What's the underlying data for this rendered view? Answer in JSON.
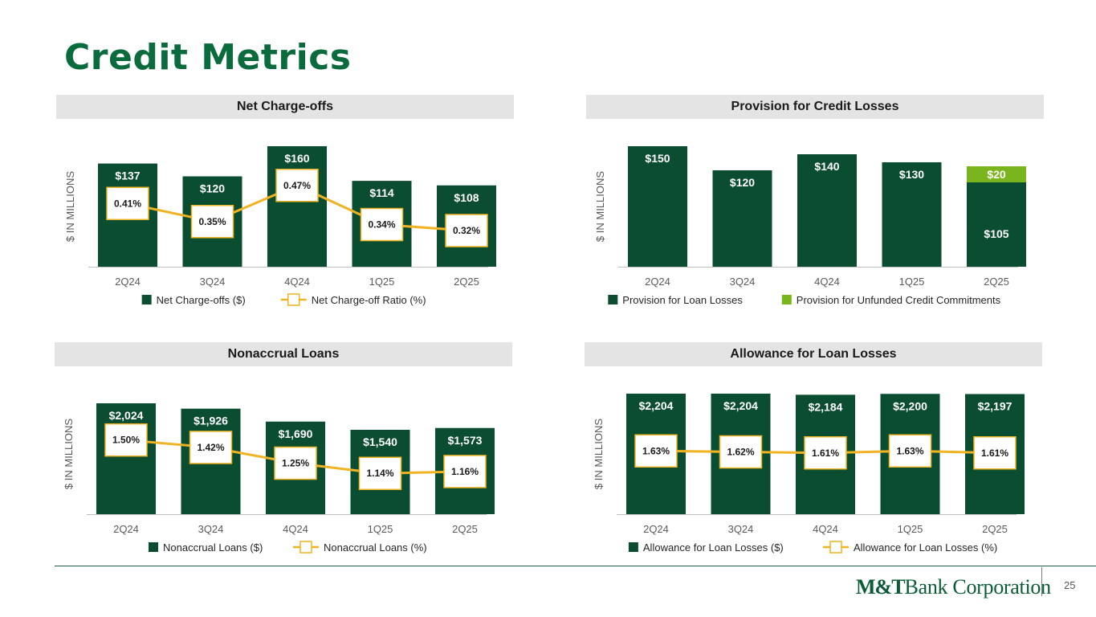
{
  "page": {
    "title": "Credit Metrics",
    "page_number": "25",
    "brand": {
      "bold": "M&T",
      "rest": "Bank Corporation"
    }
  },
  "colors": {
    "bar": "#0b4d30",
    "bar_light": "#7ab51d",
    "line": "#f0b323",
    "title": "#0a6b3d",
    "header_bg": "#e4e4e4",
    "axis_text": "#595959"
  },
  "chart_data": [
    {
      "id": "net-charge-offs",
      "type": "bar",
      "title": "Net Charge-offs",
      "ylabel": "$  IN MILLIONS",
      "ylim": [
        0,
        160
      ],
      "categories": [
        "2Q24",
        "3Q24",
        "4Q24",
        "1Q25",
        "2Q25"
      ],
      "series": [
        {
          "name": "Net Charge-offs ($)",
          "kind": "bar",
          "values": [
            137,
            120,
            160,
            114,
            108
          ],
          "labels": [
            "$137",
            "$120",
            "$160",
            "$114",
            "$108"
          ]
        }
      ],
      "line": {
        "name": "Net Charge-off Ratio (%)",
        "values": [
          0.41,
          0.35,
          0.47,
          0.34,
          0.32
        ],
        "labels": [
          "0.41%",
          "0.35%",
          "0.47%",
          "0.34%",
          "0.32%"
        ],
        "range": [
          0.2,
          0.6
        ]
      },
      "legend": [
        "Net Charge-offs ($)",
        "Net Charge-off Ratio (%)"
      ]
    },
    {
      "id": "provision-credit-losses",
      "type": "bar",
      "stacked": true,
      "title": "Provision for Credit Losses",
      "ylabel": "$  IN MILLIONS",
      "ylim": [
        0,
        150
      ],
      "categories": [
        "2Q24",
        "3Q24",
        "4Q24",
        "1Q25",
        "2Q25"
      ],
      "series": [
        {
          "name": "Provision for Loan Losses",
          "kind": "bar",
          "values": [
            150,
            120,
            140,
            130,
            105
          ],
          "labels": [
            "$150",
            "$120",
            "$140",
            "$130",
            "$105"
          ]
        },
        {
          "name": "Provision for Unfunded Credit Commitments",
          "kind": "bar",
          "values": [
            0,
            0,
            0,
            0,
            20
          ],
          "labels": [
            "",
            "",
            "",
            "",
            "$20"
          ]
        }
      ],
      "legend": [
        "Provision for Loan Losses",
        "Provision for Unfunded Credit Commitments"
      ]
    },
    {
      "id": "nonaccrual-loans",
      "type": "bar",
      "title": "Nonaccrual Loans",
      "ylabel": "$  IN MILLIONS",
      "ylim": [
        0,
        2200
      ],
      "categories": [
        "2Q24",
        "3Q24",
        "4Q24",
        "1Q25",
        "2Q25"
      ],
      "series": [
        {
          "name": "Nonaccrual Loans ($)",
          "kind": "bar",
          "values": [
            2024,
            1926,
            1690,
            1540,
            1573
          ],
          "labels": [
            "$2,024",
            "$1,926",
            "$1,690",
            "$1,540",
            "$1,573"
          ]
        }
      ],
      "line": {
        "name": "Nonaccrual Loans (%)",
        "values": [
          1.5,
          1.42,
          1.25,
          1.14,
          1.16
        ],
        "labels": [
          "1.50%",
          "1.42%",
          "1.25%",
          "1.14%",
          "1.16%"
        ],
        "range": [
          0.7,
          2.0
        ]
      },
      "legend": [
        "Nonaccrual Loans ($)",
        "Nonaccrual Loans (%)"
      ]
    },
    {
      "id": "allowance-loan-losses",
      "type": "bar",
      "title": "Allowance for Loan Losses",
      "ylabel": "$ IN MILLIONS",
      "ylim": [
        0,
        2204
      ],
      "categories": [
        "2Q24",
        "3Q24",
        "4Q24",
        "1Q25",
        "2Q25"
      ],
      "series": [
        {
          "name": "Allowance for Loan Losses ($)",
          "kind": "bar",
          "values": [
            2204,
            2204,
            2184,
            2200,
            2197
          ],
          "labels": [
            "$2,204",
            "$2,204",
            "$2,184",
            "$2,200",
            "$2,197"
          ]
        }
      ],
      "line": {
        "name": "Allowance for Loan Losses (%)",
        "values": [
          1.63,
          1.62,
          1.61,
          1.63,
          1.61
        ],
        "labels": [
          "1.63%",
          "1.62%",
          "1.61%",
          "1.63%",
          "1.61%"
        ],
        "range": [
          1.0,
          2.2
        ]
      },
      "legend": [
        "Allowance for Loan Losses ($)",
        "Allowance for Loan Losses (%)"
      ]
    }
  ]
}
